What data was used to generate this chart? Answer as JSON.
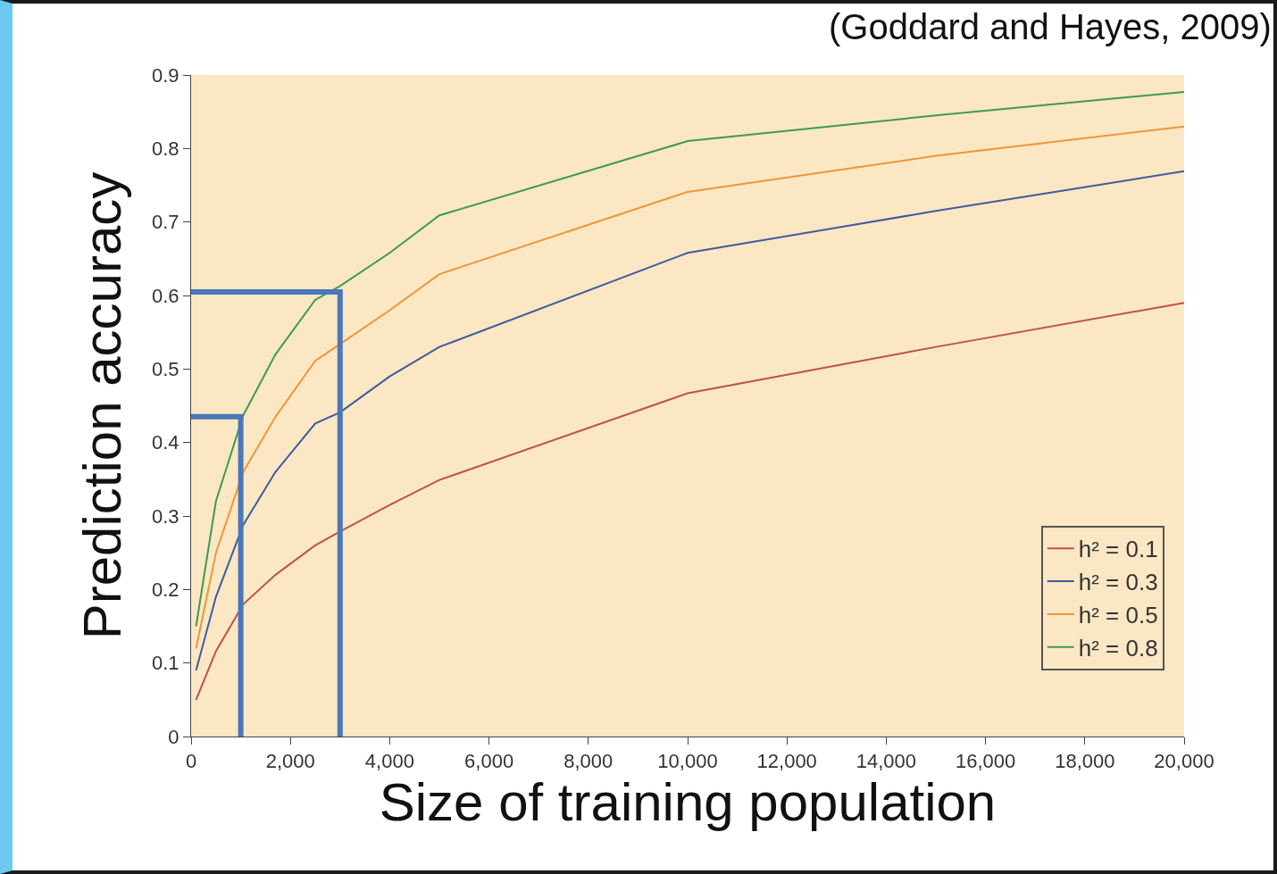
{
  "chart_data": {
    "type": "line",
    "xlabel": "Size of training population",
    "ylabel": "Prediction accuracy",
    "annotations": [
      "(Goddard and Hayes, 2009)"
    ],
    "x": [
      100,
      500,
      1050,
      1700,
      2500,
      3000,
      4000,
      5000,
      10000,
      15000,
      20000
    ],
    "series": [
      {
        "name": "h² = 0.1",
        "color": "#c0504d",
        "values": [
          0.05,
          0.116,
          0.18,
          0.22,
          0.26,
          0.279,
          0.315,
          0.349,
          0.467,
          0.53,
          0.59
        ]
      },
      {
        "name": "h² = 0.3",
        "color": "#3f5b9e",
        "values": [
          0.09,
          0.19,
          0.288,
          0.36,
          0.426,
          0.441,
          0.49,
          0.53,
          0.658,
          0.715,
          0.769
        ]
      },
      {
        "name": "h² = 0.5",
        "color": "#f0953a",
        "values": [
          0.12,
          0.25,
          0.36,
          0.435,
          0.511,
          0.534,
          0.58,
          0.629,
          0.741,
          0.79,
          0.83
        ]
      },
      {
        "name": "h² = 0.8",
        "color": "#3f9a4f",
        "values": [
          0.15,
          0.32,
          0.437,
          0.52,
          0.594,
          0.613,
          0.658,
          0.709,
          0.81,
          0.845,
          0.877
        ]
      },
      {
        "type": "line",
        "color": "#4a78b8",
        "x": [
          0,
          3000,
          3000
        ],
        "values": [
          0.605,
          0.605,
          0
        ]
      },
      {
        "type": "line",
        "color": "#4a78b8",
        "x": [
          0,
          1000,
          1000
        ],
        "values": [
          0.435,
          0.435,
          0
        ]
      }
    ],
    "xlim": [
      0,
      20000
    ],
    "xticks": [
      0,
      {
        "value": 2000,
        "label": "2,000"
      },
      {
        "value": 4000,
        "label": "4,000"
      },
      {
        "value": 6000,
        "label": "6,000"
      },
      {
        "value": 8000,
        "label": "8,000"
      },
      {
        "value": 10000,
        "label": "10,000"
      },
      {
        "value": 12000,
        "label": "12,000"
      },
      {
        "value": 14000,
        "label": "14,000"
      },
      {
        "value": 16000,
        "label": "16,000"
      },
      {
        "value": 18000,
        "label": "18,000"
      },
      {
        "value": 20000,
        "label": "20,000"
      }
    ],
    "ylim": [
      0,
      0.9
    ],
    "yticks": [
      0,
      0.1,
      0.2,
      0.3,
      0.4,
      0.5,
      0.6,
      0.7,
      0.8,
      0.9
    ],
    "grid": false,
    "legend": "bottom right",
    "marker": "none",
    "line_style": "solid"
  }
}
